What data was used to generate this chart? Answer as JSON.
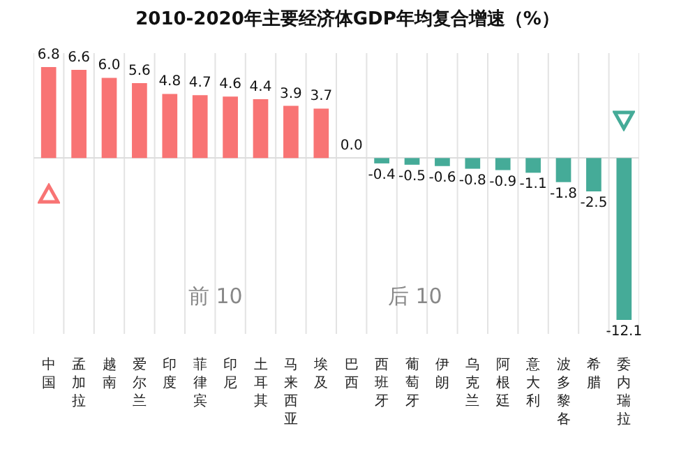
{
  "chart_data": {
    "type": "bar",
    "title": "2010-2020年主要经济体GDP年均复合增速（%）",
    "categories": [
      "中国",
      "孟加拉",
      "越南",
      "爱尔兰",
      "印度",
      "菲律宾",
      "印尼",
      "土耳其",
      "马来西亚",
      "埃及",
      "巴西",
      "西班牙",
      "葡萄牙",
      "伊朗",
      "乌克兰",
      "阿根廷",
      "意大利",
      "波多黎各",
      "希腊",
      "委内瑞拉"
    ],
    "values": [
      6.8,
      6.6,
      6.0,
      5.6,
      4.8,
      4.7,
      4.6,
      4.4,
      3.9,
      3.7,
      0.0,
      -0.4,
      -0.5,
      -0.6,
      -0.8,
      -0.9,
      -1.1,
      -1.8,
      -2.5,
      -12.1
    ],
    "colors": [
      "#f87474",
      "#f87474",
      "#f87474",
      "#f87474",
      "#f87474",
      "#f87474",
      "#f87474",
      "#f87474",
      "#f87474",
      "#f87474",
      "#f87474",
      "#45ab98",
      "#45ab98",
      "#45ab98",
      "#45ab98",
      "#45ab98",
      "#45ab98",
      "#45ab98",
      "#45ab98",
      "#45ab98"
    ],
    "value_labels": [
      "6.8",
      "6.6",
      "6.0",
      "5.6",
      "4.8",
      "4.7",
      "4.6",
      "4.4",
      "3.9",
      "3.7",
      "0.0",
      "-0.4",
      "-0.5",
      "-0.6",
      "-0.8",
      "-0.9",
      "-1.1",
      "-1.8",
      "-2.5",
      "-12.1"
    ],
    "grid": "x",
    "annotations": [
      "前 10",
      "后 10"
    ]
  }
}
